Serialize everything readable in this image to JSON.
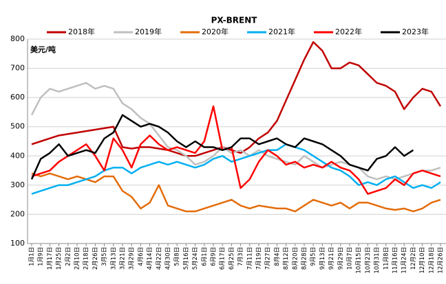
{
  "chart_data": {
    "type": "line",
    "title": "PX-BRENT",
    "y_label": "美元/吨",
    "categories": [
      "1月1日",
      "1月9日",
      "1月17日",
      "1月25日",
      "2月2日",
      "2月10日",
      "2月18日",
      "2月26日",
      "3月5日",
      "3月13日",
      "3月21日",
      "3月29日",
      "4月6日",
      "4月14日",
      "4月22日",
      "4月30日",
      "5月8日",
      "5月16日",
      "5月24日",
      "6月1日",
      "6月9日",
      "6月17日",
      "6月25日",
      "7月3日",
      "7月11日",
      "7月19日",
      "7月27日",
      "8月4日",
      "8月12日",
      "8月20日",
      "8月28日",
      "9月5日",
      "9月13日",
      "9月21日",
      "9月29日",
      "10月7日",
      "10月15日",
      "10月23日",
      "10月31日",
      "11月8日",
      "11月16日",
      "11月24日",
      "12月2日",
      "12月10日",
      "12月18日",
      "12月26日"
    ],
    "series": [
      {
        "name": "2018年",
        "color": "#c00000",
        "values": [
          440,
          450,
          460,
          470,
          475,
          480,
          485,
          490,
          495,
          500,
          430,
          425,
          430,
          430,
          425,
          420,
          410,
          400,
          400,
          410,
          420,
          430,
          420,
          410,
          430,
          460,
          480,
          520,
          590,
          660,
          730,
          790,
          760,
          700,
          700,
          720,
          710,
          680,
          650,
          640,
          620,
          560,
          600,
          630,
          620,
          570
        ]
      },
      {
        "name": "2019年",
        "color": "#bfbfbf",
        "values": [
          540,
          600,
          630,
          620,
          630,
          640,
          650,
          630,
          640,
          630,
          580,
          560,
          530,
          510,
          470,
          430,
          420,
          400,
          370,
          380,
          400,
          430,
          410,
          420,
          400,
          420,
          400,
          390,
          380,
          370,
          400,
          380,
          360,
          370,
          380,
          370,
          360,
          330,
          320,
          330,
          320,
          330,
          340,
          350,
          350,
          360
        ]
      },
      {
        "name": "2020年",
        "color": "#e36c09",
        "values": [
          340,
          330,
          340,
          330,
          320,
          330,
          320,
          310,
          330,
          330,
          280,
          260,
          220,
          240,
          300,
          230,
          220,
          210,
          210,
          220,
          230,
          240,
          250,
          230,
          220,
          230,
          225,
          220,
          220,
          210,
          230,
          250,
          240,
          230,
          240,
          220,
          240,
          240,
          230,
          220,
          215,
          220,
          210,
          220,
          240,
          250
        ]
      },
      {
        "name": "2021年",
        "color": "#00b0f0",
        "values": [
          270,
          280,
          290,
          300,
          300,
          310,
          320,
          330,
          350,
          360,
          360,
          340,
          360,
          370,
          380,
          370,
          380,
          370,
          360,
          370,
          390,
          400,
          380,
          390,
          400,
          410,
          420,
          420,
          440,
          430,
          420,
          400,
          380,
          360,
          350,
          330,
          300,
          310,
          300,
          320,
          330,
          310,
          290,
          300,
          290,
          310
        ]
      },
      {
        "name": "2022年",
        "color": "#ff0000",
        "values": [
          330,
          340,
          350,
          380,
          400,
          420,
          440,
          400,
          350,
          460,
          420,
          360,
          440,
          470,
          440,
          420,
          430,
          420,
          410,
          450,
          570,
          420,
          430,
          290,
          320,
          380,
          420,
          400,
          370,
          380,
          360,
          370,
          360,
          380,
          360,
          350,
          320,
          270,
          280,
          290,
          320,
          300,
          340,
          350,
          340,
          330
        ]
      },
      {
        "name": "2023年",
        "color": "#000000",
        "values": [
          320,
          390,
          410,
          440,
          400,
          410,
          420,
          410,
          460,
          480,
          540,
          520,
          500,
          510,
          500,
          480,
          450,
          430,
          450,
          430,
          430,
          420,
          430,
          460,
          460,
          440,
          450,
          460,
          440,
          430,
          460,
          450,
          440,
          420,
          400,
          370,
          360,
          350,
          390,
          400,
          430,
          400,
          420,
          null,
          null,
          null
        ]
      }
    ],
    "ylim": [
      100,
      800
    ],
    "yticks": [
      100,
      200,
      300,
      400,
      500,
      600,
      700,
      800
    ],
    "grid": true
  }
}
